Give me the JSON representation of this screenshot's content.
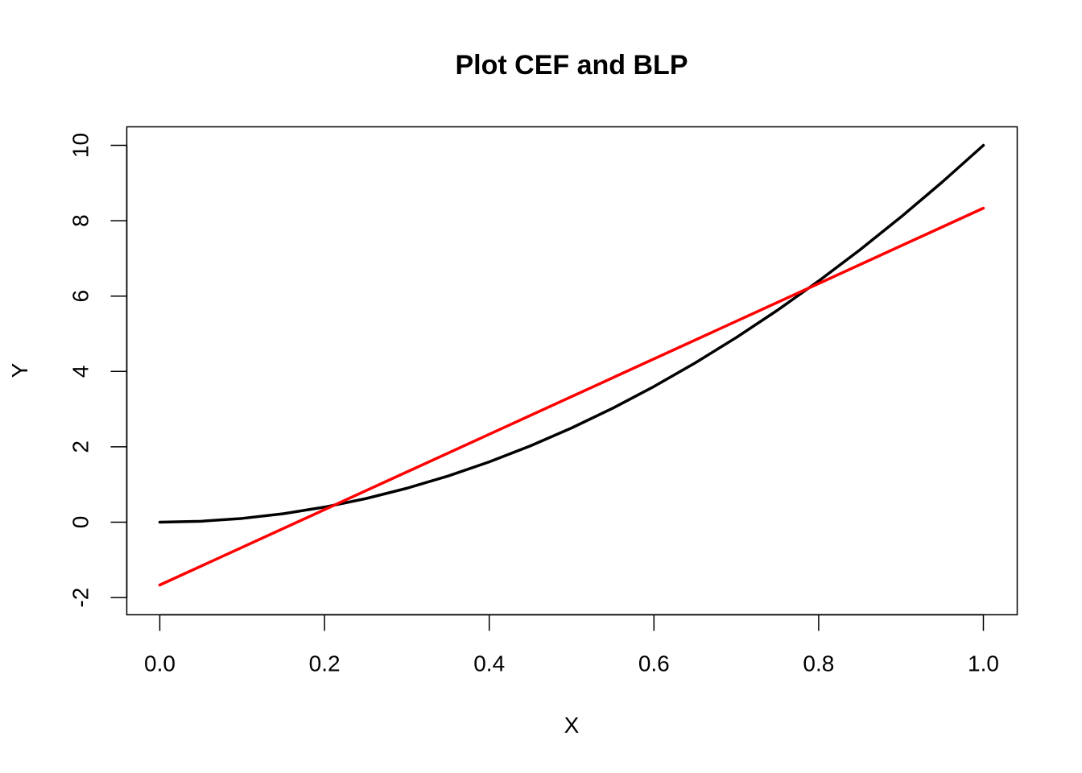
{
  "chart_data": {
    "type": "line",
    "title": "Plot CEF and BLP",
    "xlabel": "X",
    "ylabel": "Y",
    "xlim": [
      0.0,
      1.0
    ],
    "ylim": [
      -2.5,
      10.5
    ],
    "xticks": [
      0.0,
      0.2,
      0.4,
      0.6,
      0.8,
      1.0
    ],
    "xtick_labels": [
      "0.0",
      "0.2",
      "0.4",
      "0.6",
      "0.8",
      "1.0"
    ],
    "yticks": [
      -2,
      0,
      2,
      4,
      6,
      8,
      10
    ],
    "ytick_labels": [
      "-2",
      "0",
      "2",
      "4",
      "6",
      "8",
      "10"
    ],
    "grid": false,
    "legend": "none",
    "series": [
      {
        "color": "#000000",
        "x": [
          0.0,
          0.05,
          0.1,
          0.15,
          0.2,
          0.25,
          0.3,
          0.35,
          0.4,
          0.45,
          0.5,
          0.55,
          0.6,
          0.65,
          0.7,
          0.75,
          0.8,
          0.85,
          0.9,
          0.95,
          1.0
        ],
        "y": [
          0.0,
          0.025,
          0.1,
          0.225,
          0.4,
          0.625,
          0.9,
          1.225,
          1.6,
          2.025,
          2.5,
          3.025,
          3.6,
          4.225,
          4.9,
          5.625,
          6.4,
          7.225,
          8.1,
          9.025,
          10.0
        ]
      },
      {
        "color": "#ff0000",
        "x": [
          0.0,
          1.0
        ],
        "y": [
          -1.667,
          8.333
        ]
      }
    ]
  }
}
